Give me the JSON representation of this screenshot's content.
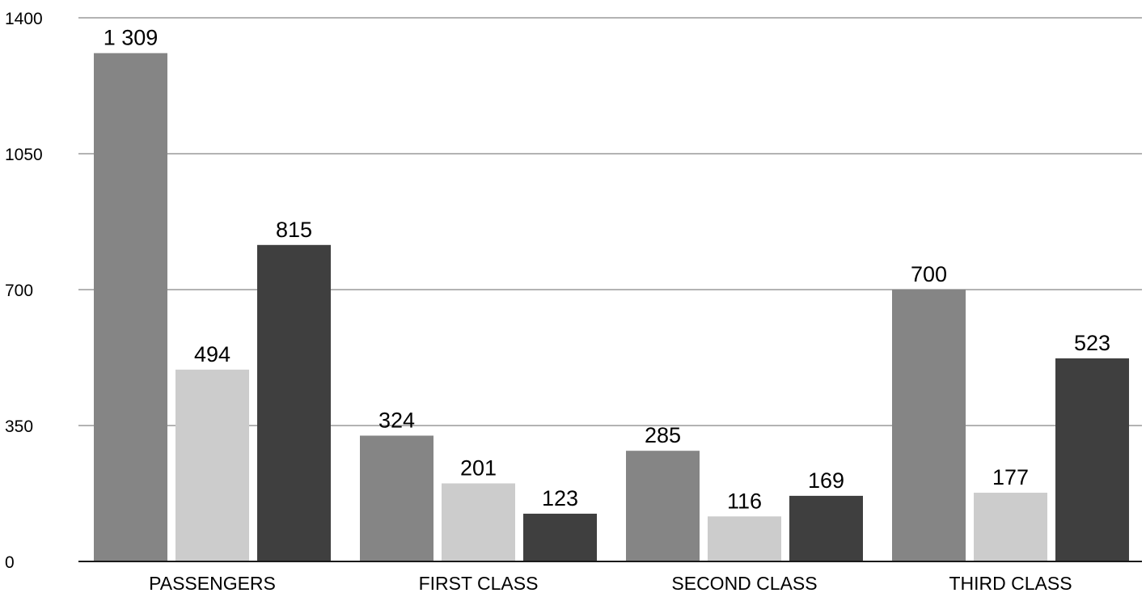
{
  "chart_data": {
    "type": "bar",
    "categories": [
      "PASSENGERS",
      "FIRST CLASS",
      "SECOND CLASS",
      "THIRD CLASS"
    ],
    "series": [
      {
        "values": [
          1309,
          324,
          285,
          700
        ],
        "color": "#858585"
      },
      {
        "values": [
          494,
          201,
          116,
          177
        ],
        "color": "#cccccc"
      },
      {
        "values": [
          815,
          123,
          169,
          523
        ],
        "color": "#3f3f3f"
      }
    ],
    "data_labels": [
      [
        "1 309",
        "324",
        "285",
        "700"
      ],
      [
        "494",
        "201",
        "116",
        "177"
      ],
      [
        "815",
        "123",
        "169",
        "523"
      ]
    ],
    "y_ticks": [
      "0",
      "350",
      "700",
      "1050",
      "1400"
    ],
    "ylim": [
      0,
      1400
    ],
    "grid": true,
    "legend": "none",
    "title": "",
    "xlabel": "",
    "ylabel": ""
  }
}
